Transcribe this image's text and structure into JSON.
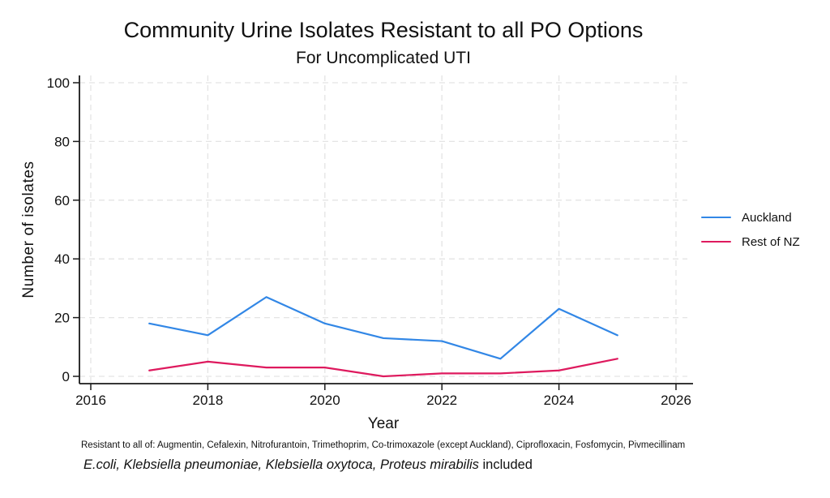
{
  "figure": {
    "title": "Community Urine Isolates Resistant to all PO Options",
    "subtitle": "For Uncomplicated UTI",
    "footnote1": "Resistant to all of: Augmentin, Cefalexin, Nitrofurantoin, Trimethoprim, Co-trimoxazole (except Auckland), Ciprofloxacin, Fosfomycin, Pivmecillinam",
    "footnote2_italic": "E.coli, Klebsiella pneumoniae, Klebsiella oxytoca, Proteus mirabilis",
    "footnote2_regular": " included"
  },
  "chart_data": {
    "type": "line",
    "title": "Community Urine Isolates Resistant to all PO Options",
    "subtitle": "For Uncomplicated UTI",
    "xlabel": "Year",
    "ylabel": "Number of isolates",
    "x": [
      2017,
      2018,
      2019,
      2020,
      2021,
      2022,
      2023,
      2024,
      2025
    ],
    "series": [
      {
        "name": "Auckland",
        "color": "#3287e6",
        "values": [
          18,
          14,
          27,
          18,
          13,
          12,
          6,
          23,
          14
        ]
      },
      {
        "name": "Rest of NZ",
        "color": "#de1a5e",
        "values": [
          2,
          5,
          3,
          3,
          0,
          1,
          1,
          2,
          6
        ]
      }
    ],
    "xlim": [
      2016,
      2026.3
    ],
    "ylim": [
      0,
      100
    ],
    "xticks": [
      2016,
      2018,
      2020,
      2022,
      2024,
      2026
    ],
    "yticks": [
      0,
      20,
      40,
      60,
      80,
      100
    ],
    "grid": true,
    "grid_style": "dashed",
    "legend_position": "right-outside",
    "axis_color": "#1a1a1a",
    "gridline_color": "#e4e4e4"
  }
}
